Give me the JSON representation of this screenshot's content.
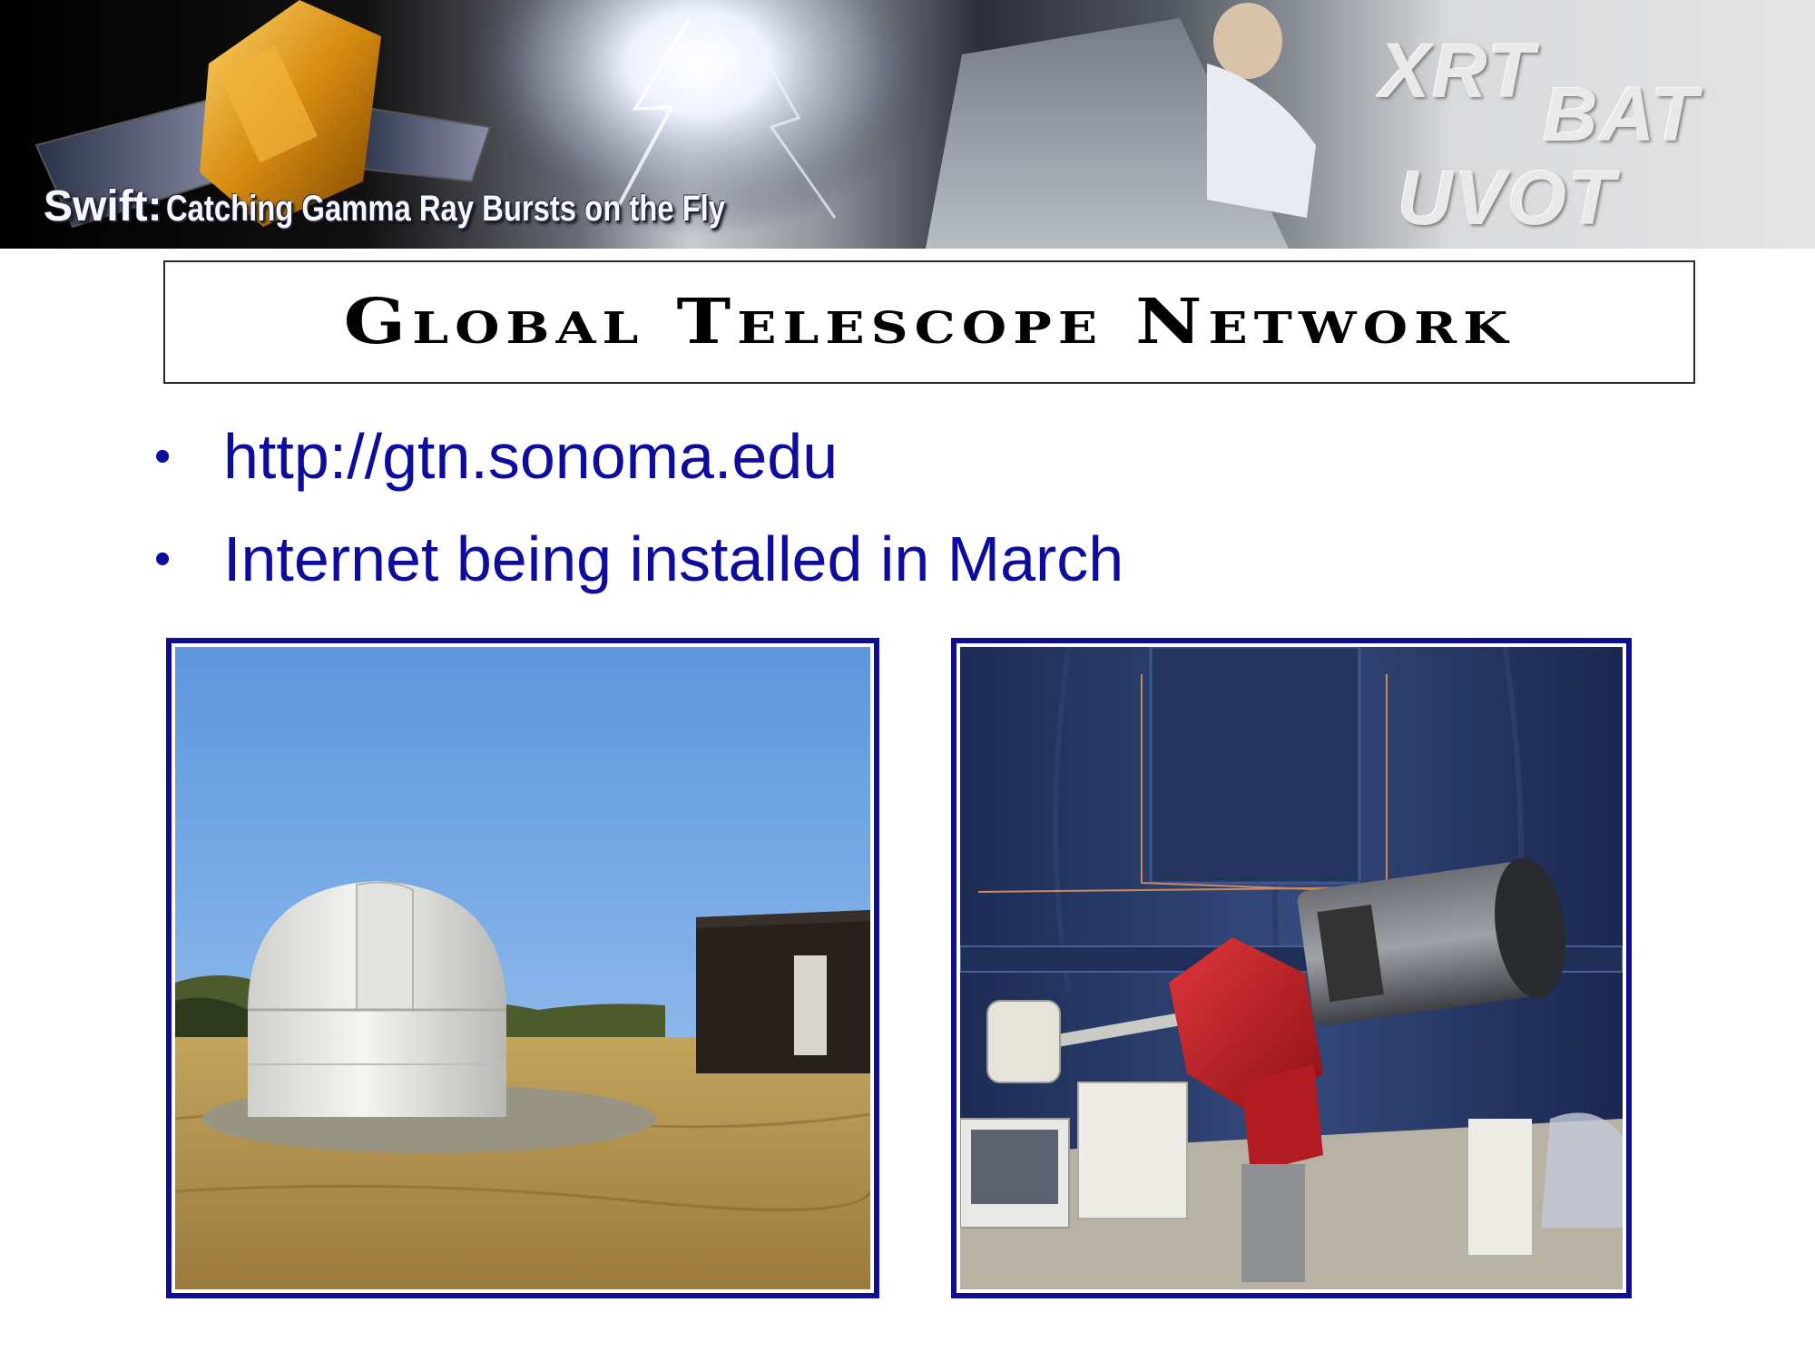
{
  "banner": {
    "title_prefix": "Swift:",
    "title_tagline": "Catching Gamma Ray Bursts on the Fly",
    "instruments": [
      "XRT",
      "BAT",
      "UVOT"
    ]
  },
  "slide": {
    "title": "Global Telescope Network",
    "bullets": [
      "http://gtn.sonoma.edu",
      "Internet being installed in March"
    ],
    "bullet_symbol": "•"
  },
  "photos": [
    {
      "subject": "white-observatory-dome-in-dry-field"
    },
    {
      "subject": "telescope-on-red-mount-inside-dome"
    }
  ],
  "colors": {
    "bullet_text": "#0d0c9e",
    "photo_border": "#0f0e8f",
    "title_text": "#000000"
  }
}
